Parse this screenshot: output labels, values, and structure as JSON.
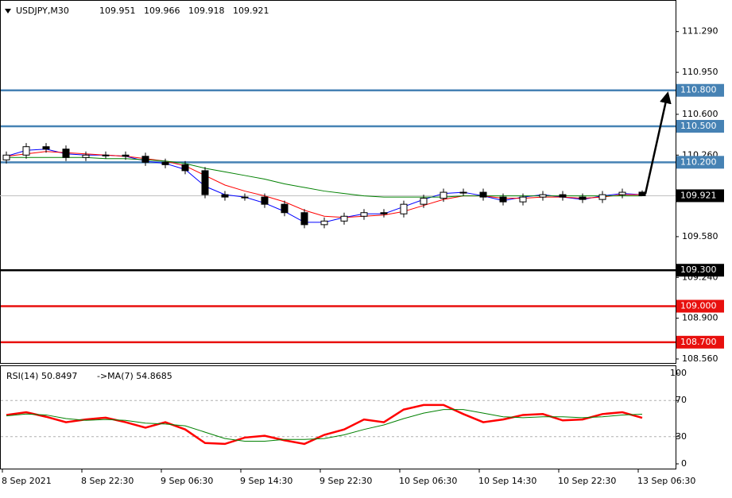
{
  "chart_data": [
    {
      "type": "candlestick",
      "title": "USDJPY,M30",
      "header_values": [
        {
          "value": 109.951,
          "label": "109.951"
        },
        {
          "value": 109.966,
          "label": "109.966"
        },
        {
          "value": 109.918,
          "label": "109.918"
        },
        {
          "value": 109.921,
          "label": "109.921"
        }
      ],
      "categories": [
        "8 Sep 2021",
        null,
        null,
        null,
        "8 Sep 22:30",
        null,
        null,
        null,
        "9 Sep 06:30",
        null,
        null,
        null,
        "9 Sep 14:30",
        null,
        null,
        null,
        "9 Sep 22:30",
        null,
        null,
        null,
        "10 Sep 06:30",
        null,
        null,
        null,
        "10 Sep 14:30",
        null,
        null,
        null,
        "10 Sep 22:30",
        null,
        null,
        null,
        "13 Sep 06:30"
      ],
      "open": [
        110.22,
        110.26,
        110.33,
        110.31,
        110.24,
        110.26,
        110.26,
        110.25,
        110.2,
        110.18,
        110.13,
        109.93,
        109.91,
        109.91,
        109.85,
        109.78,
        109.68,
        109.71,
        109.75,
        109.78,
        109.77,
        109.85,
        109.9,
        109.95,
        109.95,
        109.91,
        109.87,
        109.91,
        109.93,
        109.91,
        109.89,
        109.93,
        109.951
      ],
      "high": [
        110.29,
        110.36,
        110.36,
        110.34,
        110.29,
        110.29,
        110.29,
        110.28,
        110.23,
        110.21,
        110.16,
        109.96,
        109.94,
        109.94,
        109.88,
        109.81,
        109.74,
        109.78,
        109.81,
        109.81,
        109.88,
        109.93,
        109.98,
        109.98,
        109.98,
        109.94,
        109.94,
        109.96,
        109.96,
        109.94,
        109.96,
        109.98,
        109.966
      ],
      "low": [
        110.19,
        110.23,
        110.28,
        110.21,
        110.21,
        110.23,
        110.22,
        110.17,
        110.15,
        110.1,
        109.9,
        109.88,
        109.88,
        109.82,
        109.75,
        109.65,
        109.65,
        109.68,
        109.72,
        109.74,
        109.74,
        109.82,
        109.87,
        109.92,
        109.88,
        109.84,
        109.84,
        109.88,
        109.88,
        109.86,
        109.86,
        109.9,
        109.918
      ],
      "close": [
        110.26,
        110.33,
        110.31,
        110.24,
        110.26,
        110.26,
        110.25,
        110.2,
        110.18,
        110.13,
        109.93,
        109.91,
        109.91,
        109.85,
        109.78,
        109.68,
        109.71,
        109.75,
        109.78,
        109.77,
        109.85,
        109.9,
        109.95,
        109.95,
        109.91,
        109.87,
        109.91,
        109.93,
        109.91,
        109.89,
        109.93,
        109.95,
        109.921
      ],
      "lines": [
        {
          "color": "#0000ff",
          "values": [
            110.25,
            110.3,
            110.31,
            110.27,
            110.26,
            110.26,
            110.25,
            110.21,
            110.19,
            110.14,
            110.0,
            109.93,
            109.91,
            109.86,
            109.79,
            109.7,
            109.7,
            109.74,
            109.77,
            109.77,
            109.83,
            109.89,
            109.94,
            109.95,
            109.92,
            109.88,
            109.91,
            109.93,
            109.91,
            109.89,
            109.92,
            109.94,
            109.93
          ]
        },
        {
          "color": "#ff0000",
          "values": [
            110.25,
            110.27,
            110.29,
            110.28,
            110.27,
            110.26,
            110.25,
            110.23,
            110.21,
            110.17,
            110.09,
            110.01,
            109.96,
            109.92,
            109.87,
            109.8,
            109.75,
            109.74,
            109.75,
            109.76,
            109.79,
            109.84,
            109.89,
            109.92,
            109.92,
            109.9,
            109.9,
            109.91,
            109.91,
            109.9,
            109.91,
            109.93,
            109.93
          ]
        },
        {
          "color": "#008000",
          "values": [
            110.24,
            110.24,
            110.24,
            110.24,
            110.24,
            110.23,
            110.23,
            110.22,
            110.21,
            110.19,
            110.15,
            110.12,
            110.09,
            110.06,
            110.02,
            109.99,
            109.96,
            109.94,
            109.92,
            109.91,
            109.91,
            109.91,
            109.91,
            109.92,
            109.92,
            109.92,
            109.92,
            109.92,
            109.92,
            109.92,
            109.92,
            109.92,
            109.92
          ]
        }
      ],
      "ylim": [
        108.52,
        111.52
      ],
      "yticks": [
        {
          "value": 111.29,
          "label": "111.290"
        },
        {
          "value": 110.95,
          "label": "110.950"
        },
        {
          "value": 110.6,
          "label": "110.600"
        },
        {
          "value": 110.26,
          "label": "110.260"
        },
        {
          "value": 109.58,
          "label": "109.580"
        },
        {
          "value": 109.24,
          "label": "109.240"
        },
        {
          "value": 108.9,
          "label": "108.900"
        },
        {
          "value": 108.56,
          "label": "108.560"
        }
      ],
      "levels": [
        {
          "value": 110.8,
          "label": "110.800",
          "color": "#4682b4"
        },
        {
          "value": 110.5,
          "label": "110.500",
          "color": "#4682b4"
        },
        {
          "value": 110.2,
          "label": "110.200",
          "color": "#4682b4"
        },
        {
          "value": 109.3,
          "label": "109.300",
          "color": "#000000"
        },
        {
          "value": 109.0,
          "label": "109.000",
          "color": "#e8100e"
        },
        {
          "value": 108.7,
          "label": "108.700",
          "color": "#e8100e"
        }
      ],
      "last_price": {
        "value": 109.921,
        "label": "109.921"
      }
    },
    {
      "type": "line",
      "title": "RSI(14) 50.8497",
      "subtitle": "->MA(7) 54.8685",
      "series": [
        {
          "color": "#ff0000",
          "values": [
            54,
            57,
            52,
            46,
            49,
            51,
            46,
            40,
            46,
            38,
            23,
            22,
            29,
            31,
            26,
            22,
            32,
            38,
            49,
            46,
            60,
            65,
            65,
            55,
            46,
            49,
            54,
            55,
            48,
            49,
            55,
            57,
            50.8497
          ]
        },
        {
          "color": "#008000",
          "values": [
            53,
            55,
            54,
            50,
            48,
            49,
            48,
            45,
            44,
            42,
            35,
            28,
            25,
            25,
            27,
            27,
            28,
            32,
            38,
            43,
            50,
            56,
            60,
            60,
            56,
            52,
            51,
            52,
            52,
            51,
            52,
            54,
            54.8685
          ]
        }
      ],
      "ylim": [
        0,
        100
      ],
      "yticks": [
        0,
        30,
        70,
        100
      ],
      "levels": [
        30,
        70
      ]
    }
  ]
}
